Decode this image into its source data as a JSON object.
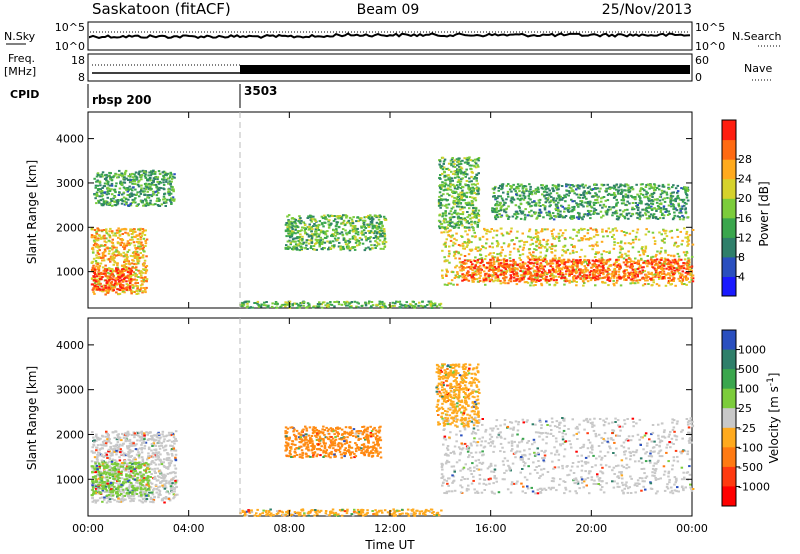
{
  "header": {
    "station": "Saskatoon (fitACF)",
    "beam": "Beam 09",
    "date": "25/Nov/2013"
  },
  "noise_panel": {
    "left_label": "N.Sky",
    "right_label": "N.Search",
    "left_ticks": [
      "10^5",
      "10^0"
    ],
    "right_ticks": [
      "10^5",
      "10^0"
    ]
  },
  "freq_panel": {
    "left_label_1": "Freq.",
    "left_label_2": "[MHz]",
    "right_label": "Nave",
    "left_ticks": [
      "18",
      "8"
    ],
    "right_ticks": [
      "60",
      "0"
    ]
  },
  "cpid": {
    "label": "CPID",
    "entries": [
      {
        "time_hours": 0.0,
        "text": "rbsp 200"
      },
      {
        "time_hours": 6.0,
        "text": "3503"
      }
    ]
  },
  "chart_data": [
    {
      "type": "heatmap",
      "quantity": "power",
      "ylabel": "Slant Range [km]",
      "xlabel": "",
      "xlim_hours": [
        0,
        24
      ],
      "ylim": [
        180,
        4600
      ],
      "y_ticks": [
        1000,
        2000,
        3000,
        4000
      ],
      "colorbar": {
        "label": "Power [dB]",
        "ticks": [
          4,
          8,
          12,
          16,
          20,
          24,
          28
        ],
        "colors": [
          "#1a1aff",
          "#2a4fbf",
          "#2f7f6a",
          "#3aa64d",
          "#7ccc3b",
          "#d6d22c",
          "#ffaa1e",
          "#ff6a12",
          "#ff1e10"
        ]
      },
      "regions": [
        {
          "t": [
            0.1,
            2.3
          ],
          "r": [
            500,
            2000
          ],
          "value": 20
        },
        {
          "t": [
            0.1,
            1.7
          ],
          "r": [
            600,
            1100
          ],
          "value": 27
        },
        {
          "t": [
            0.2,
            3.4
          ],
          "r": [
            2500,
            3300
          ],
          "value": 10
        },
        {
          "t": [
            6.0,
            14.0
          ],
          "r": [
            200,
            350
          ],
          "value": 12
        },
        {
          "t": [
            7.8,
            11.8
          ],
          "r": [
            1500,
            2300
          ],
          "value": 12
        },
        {
          "t": [
            14.0,
            24.0
          ],
          "r": [
            700,
            2000
          ],
          "value": 18
        },
        {
          "t": [
            14.8,
            24.0
          ],
          "r": [
            800,
            1300
          ],
          "value": 25
        },
        {
          "t": [
            13.9,
            15.5
          ],
          "r": [
            2000,
            3600
          ],
          "value": 12
        },
        {
          "t": [
            16.0,
            23.8
          ],
          "r": [
            2200,
            3000
          ],
          "value": 10
        }
      ]
    },
    {
      "type": "heatmap",
      "quantity": "velocity",
      "ylabel": "Slant Range [km]",
      "xlabel": "Time UT",
      "x_tick_labels": [
        "00:00",
        "04:00",
        "08:00",
        "12:00",
        "16:00",
        "20:00",
        "00:00"
      ],
      "xlim_hours": [
        0,
        24
      ],
      "ylim": [
        180,
        4600
      ],
      "y_ticks": [
        1000,
        2000,
        3000,
        4000
      ],
      "colorbar": {
        "label": "Velocity [m s^-1]",
        "ticks": [
          1000,
          500,
          100,
          25,
          -25,
          -100,
          -500,
          -1000
        ],
        "colors": [
          "#2a4fbf",
          "#2f7f6a",
          "#3aa64d",
          "#7ccc3b",
          "#c8c8c8",
          "#ffaa1e",
          "#ff7a12",
          "#ff3a10",
          "#ff0000"
        ]
      },
      "regions": [
        {
          "t": [
            0.1,
            3.5
          ],
          "r": [
            500,
            2100
          ],
          "value": 0,
          "color": "#c8c8c8"
        },
        {
          "t": [
            0.1,
            2.4
          ],
          "r": [
            650,
            1400
          ],
          "value": 200,
          "color": "#7ccc3b"
        },
        {
          "t": [
            6.0,
            14.0
          ],
          "r": [
            200,
            350
          ],
          "value": -60,
          "color": "#ffaa1e"
        },
        {
          "t": [
            7.8,
            11.6
          ],
          "r": [
            1500,
            2200
          ],
          "value": -200,
          "color": "#ff8a12"
        },
        {
          "t": [
            14.0,
            24.0
          ],
          "r": [
            700,
            2400
          ],
          "value": 0,
          "color": "#c8c8c8"
        },
        {
          "t": [
            13.8,
            15.5
          ],
          "r": [
            2200,
            3600
          ],
          "value": -100,
          "color": "#ffaa1e"
        }
      ]
    }
  ]
}
